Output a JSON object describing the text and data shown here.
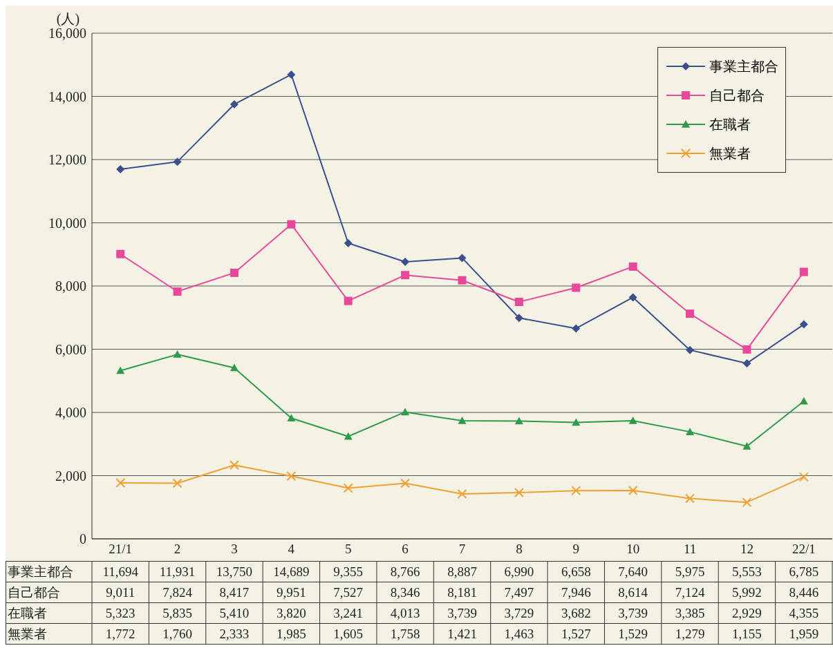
{
  "chart_data": {
    "type": "line",
    "ylabel": "(人)",
    "categories": [
      "21/1",
      "2",
      "3",
      "4",
      "5",
      "6",
      "7",
      "8",
      "9",
      "10",
      "11",
      "12",
      "22/1"
    ],
    "series": [
      {
        "name": "事業主都合",
        "color": "#3b4f8c",
        "marker": "diamond",
        "values": [
          11694,
          11931,
          13750,
          14689,
          9355,
          8766,
          8887,
          6990,
          6658,
          7640,
          5975,
          5553,
          6785
        ],
        "value_labels": [
          "11,694",
          "11,931",
          "13,750",
          "14,689",
          "9,355",
          "8,766",
          "8,887",
          "6,990",
          "6,658",
          "7,640",
          "5,975",
          "5,553",
          "6,785"
        ]
      },
      {
        "name": "自己都合",
        "color": "#e8489a",
        "marker": "square",
        "values": [
          9011,
          7824,
          8417,
          9951,
          7527,
          8346,
          8181,
          7497,
          7946,
          8614,
          7124,
          5992,
          8446
        ],
        "value_labels": [
          "9,011",
          "7,824",
          "8,417",
          "9,951",
          "7,527",
          "8,346",
          "8,181",
          "7,497",
          "7,946",
          "8,614",
          "7,124",
          "5,992",
          "8,446"
        ]
      },
      {
        "name": "在職者",
        "color": "#2e9a4a",
        "marker": "triangle",
        "values": [
          5323,
          5835,
          5410,
          3820,
          3241,
          4013,
          3739,
          3729,
          3682,
          3739,
          3385,
          2929,
          4355
        ],
        "value_labels": [
          "5,323",
          "5,835",
          "5,410",
          "3,820",
          "3,241",
          "4,013",
          "3,739",
          "3,729",
          "3,682",
          "3,739",
          "3,385",
          "2,929",
          "4,355"
        ]
      },
      {
        "name": "無業者",
        "color": "#f0a030",
        "marker": "cross",
        "values": [
          1772,
          1760,
          2333,
          1985,
          1605,
          1758,
          1421,
          1463,
          1527,
          1529,
          1279,
          1155,
          1959
        ],
        "value_labels": [
          "1,772",
          "1,760",
          "2,333",
          "1,985",
          "1,605",
          "1,758",
          "1,421",
          "1,463",
          "1,527",
          "1,529",
          "1,279",
          "1,155",
          "1,959"
        ]
      }
    ],
    "ylim": [
      0,
      16000
    ],
    "yticks": [
      0,
      {
        "value": 2000,
        "label": "2,000"
      },
      {
        "value": 4000,
        "label": "4,000"
      },
      {
        "value": 6000,
        "label": "6,000"
      },
      {
        "value": 8000,
        "label": "8,000"
      },
      {
        "value": 10000,
        "label": "10,000"
      },
      {
        "value": 12000,
        "label": "12,000"
      },
      {
        "value": 14000,
        "label": "14,000"
      },
      {
        "value": 16000,
        "label": "16,000"
      }
    ],
    "grid": "y",
    "legend": "top right",
    "line_style": "solid"
  }
}
